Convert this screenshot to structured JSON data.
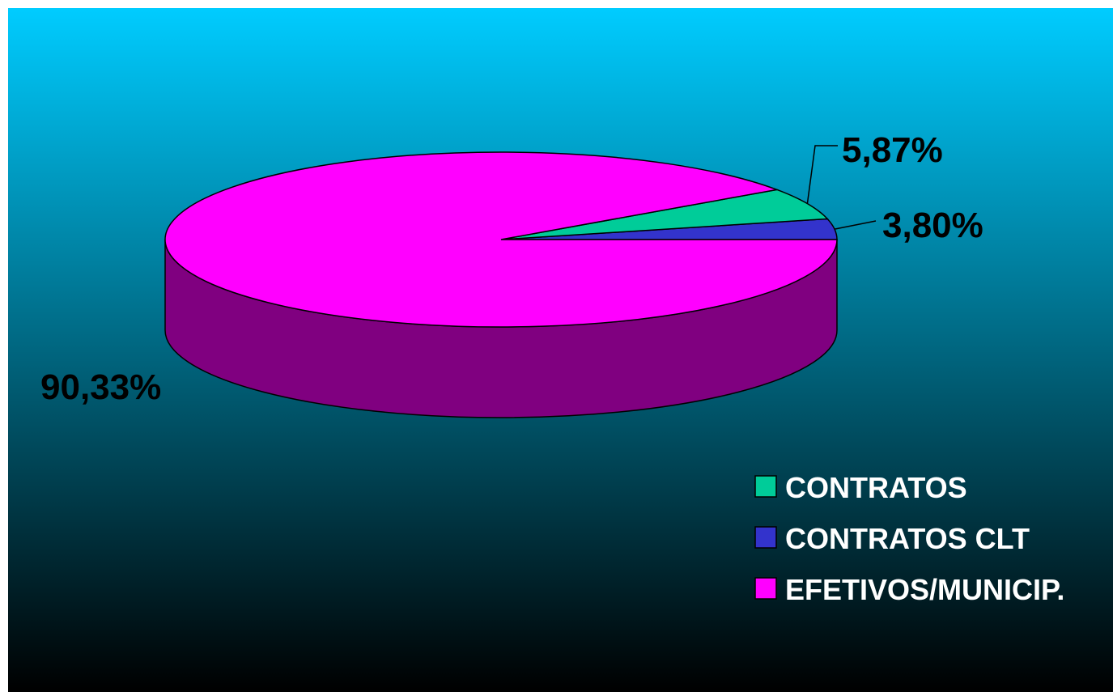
{
  "colors": {
    "background_top": "#00CCFF",
    "background_bottom": "#000000",
    "pie_side": "#800080",
    "outline": "#000000"
  },
  "chart_data": {
    "type": "pie",
    "style": "3d",
    "legend_position": "bottom-right",
    "slices": [
      {
        "label": "CONTRATOS",
        "value": 5.87,
        "value_label": "5,87%",
        "color": "#00CC99"
      },
      {
        "label": "CONTRATOS CLT",
        "value": 3.8,
        "value_label": "3,80%",
        "color": "#3333CC"
      },
      {
        "label": "EFETIVOS/MUNICIP.",
        "value": 90.33,
        "value_label": "90,33%",
        "color": "#FF00FF"
      }
    ]
  }
}
